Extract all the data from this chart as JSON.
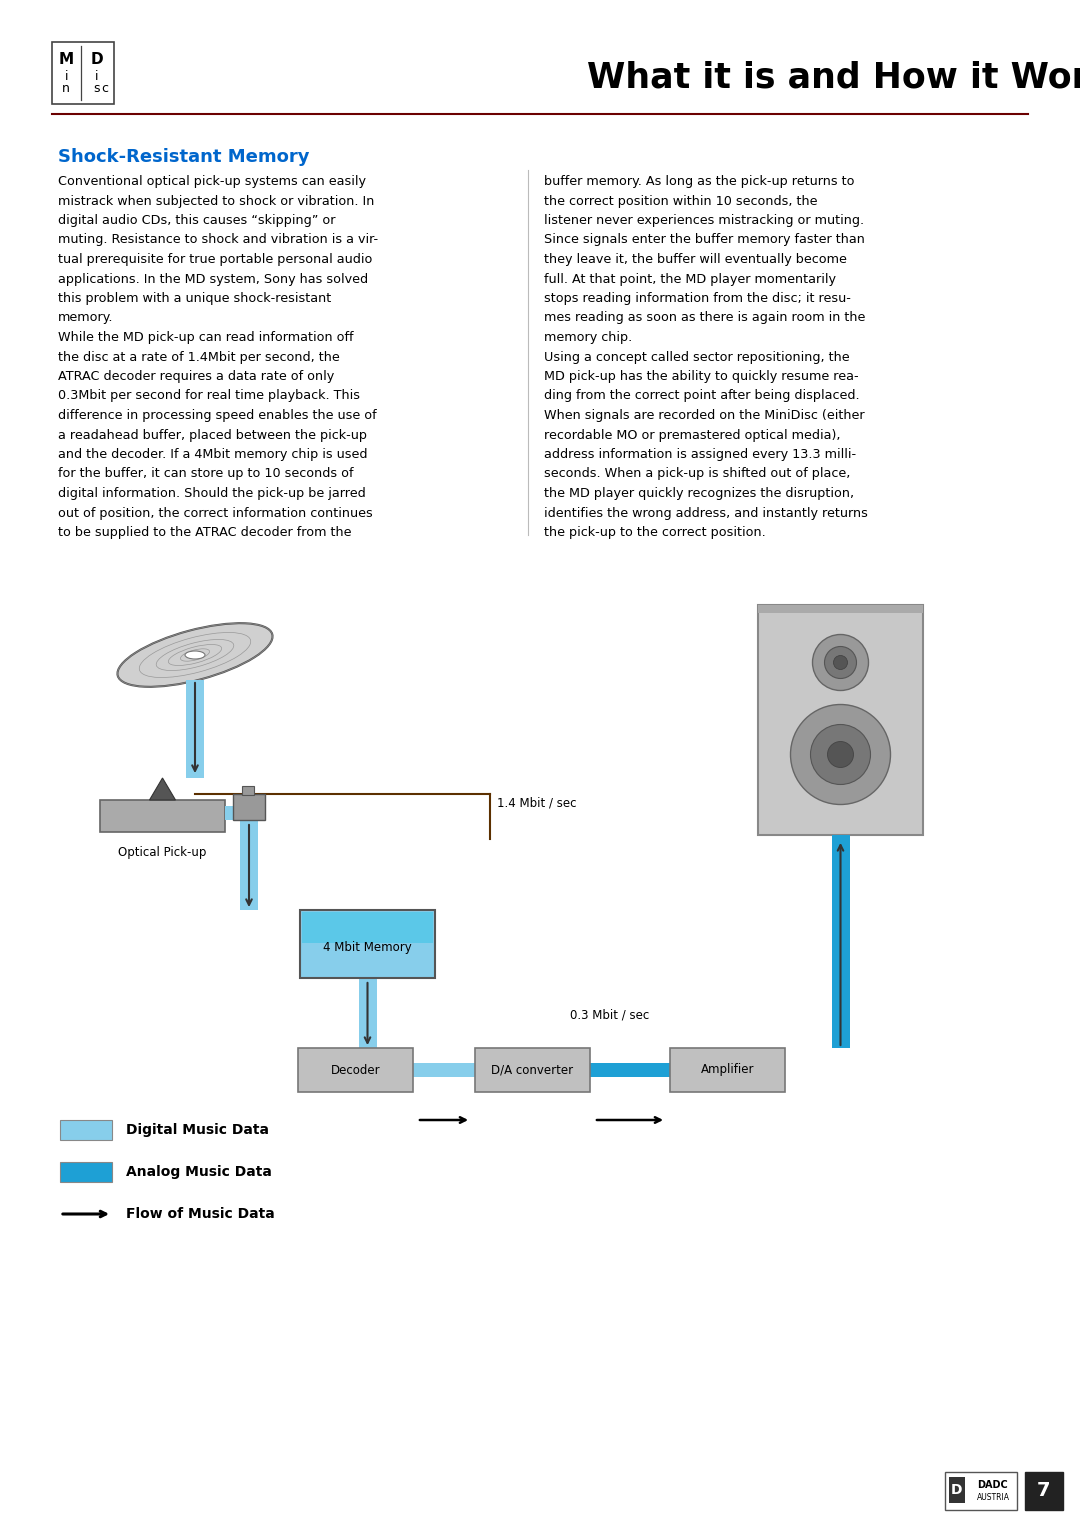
{
  "title": "What it is and How it Works",
  "section_title": "Shock-Resistant Memory",
  "section_title_color": "#0066CC",
  "bg_color": "#FFFFFF",
  "text_color": "#000000",
  "line_color": "#8B0000",
  "para1_left": "Conventional optical pick-up systems can easily mistrack when subjected to shock or vibration. In digital audio CDs, this causes “skipping” or muting. Resistance to shock and vibration is a vir-tual prerequisite for true portable personal audio applications. In the MD system, Sony has solved this problem with a unique shock-resistant memory.\nWhile the MD pick-up can read information off the disc at a rate of 1.4Mbit per second, the ATRAC decoder requires a data rate of only 0.3Mbit per second for real time playback. This difference in processing speed enables the use of a readahead buffer, placed between the pick-up and the decoder. If a 4Mbit memory chip is used for the buffer, it can store up to 10 seconds of digital information. Should the pick-up be jarred out of position, the correct information continues to be supplied to the ATRAC decoder from the",
  "para1_right": "buffer memory. As long as the pick-up returns to the correct position within 10 seconds, the listener never experiences mistracking or muting. Since signals enter the buffer memory faster than they leave it, the buffer will eventually become full. At that point, the MD player momentarily stops reading information from the disc; it resu-mes reading as soon as there is again room in the memory chip.\nUsing a concept called sector repositioning, the MD pick-up has the ability to quickly resume rea-ding from the correct point after being displaced. When signals are recorded on the MiniDisc (either recordable MO or premastered optical media), address information is assigned every 13.3 milli-seconds. When a pick-up is shifted out of place, the MD player quickly recognizes the disruption, identifies the wrong address, and instantly returns the pick-up to the correct position.",
  "light_blue": "#87CEEB",
  "dark_blue": "#1EA0D5",
  "gray_box": "#C0C0C0",
  "footer_page": "7",
  "diagram_labels": {
    "optical_pickup": "Optical Pick-up",
    "memory": "4 Mbit Memory",
    "decoder": "Decoder",
    "da_converter": "D/A converter",
    "amplifier": "Amplifier",
    "rate1": "1.4 Mbit / sec",
    "rate2": "0.3 Mbit / sec",
    "legend1": "Digital Music Data",
    "legend2": "Analog Music Data",
    "legend3": "Flow of Music Data"
  }
}
